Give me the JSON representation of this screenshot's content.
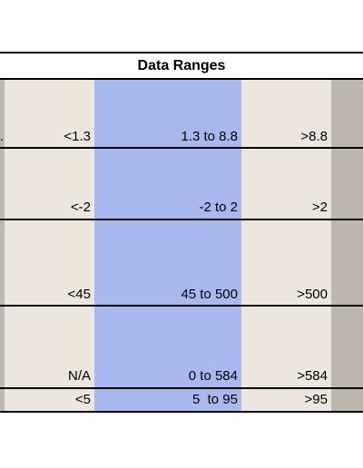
{
  "title": "Data Ranges",
  "rows": [
    {
      "low": "<1.3",
      "mid": "1.3 to 8.8",
      "high": ">8.8",
      "edge": "."
    },
    {
      "low": "<-2",
      "mid": "-2 to 2",
      "high": ">2"
    },
    {
      "low": "<45",
      "mid": "45 to 500",
      "high": ">500"
    },
    {
      "low": "N/A",
      "mid": "0 to 584",
      "high": ">584"
    },
    {
      "low": "<5",
      "mid": "5  to 95",
      "high": ">95"
    }
  ],
  "colors": {
    "low": "#ede6df",
    "mid": "#a9b8ef",
    "high": "#ede6df",
    "side": "#bcb6ad"
  }
}
